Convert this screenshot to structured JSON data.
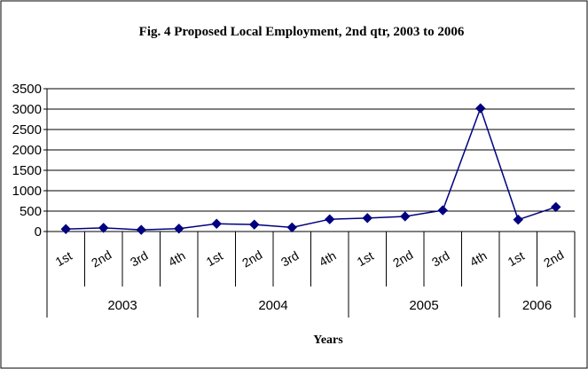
{
  "chart_data": {
    "type": "line",
    "title": "Fig. 4 Proposed Local Employment, 2nd qtr, 2003 to 2006",
    "xlabel": "Years",
    "ylabel": "",
    "ylim": [
      0,
      3500
    ],
    "yticks": [
      0,
      500,
      1000,
      1500,
      2000,
      2500,
      3000,
      3500
    ],
    "grid": true,
    "legend": "none",
    "categories": [
      "1st",
      "2nd",
      "3rd",
      "4th",
      "1st",
      "2nd",
      "3rd",
      "4th",
      "1st",
      "2nd",
      "3rd",
      "4th",
      "1st",
      "2nd"
    ],
    "groups": [
      {
        "label": "2003",
        "count": 4
      },
      {
        "label": "2004",
        "count": 4
      },
      {
        "label": "2005",
        "count": 4
      },
      {
        "label": "2006",
        "count": 2
      }
    ],
    "series": [
      {
        "values": [
          60,
          90,
          40,
          70,
          190,
          170,
          100,
          300,
          330,
          370,
          520,
          3020,
          290,
          600
        ],
        "color": "#000080"
      }
    ]
  }
}
